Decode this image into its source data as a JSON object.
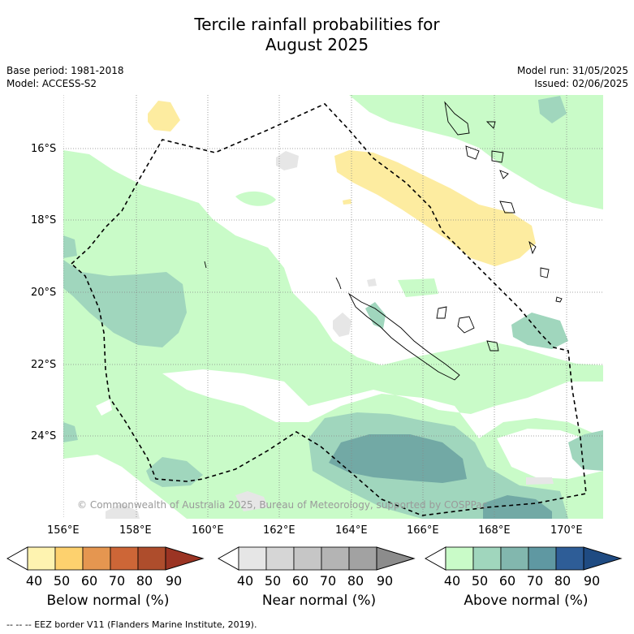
{
  "title_line1": "Tercile rainfall probabilities for",
  "title_line2": "August 2025",
  "base_period": "Base period: 1981-2018",
  "model": "Model: ACCESS-S2",
  "model_run": "Model run: 31/05/2025",
  "issued": "Issued: 02/06/2025",
  "lat_labels": [
    "16°S",
    "18°S",
    "20°S",
    "22°S",
    "24°S"
  ],
  "lon_labels": [
    "156°E",
    "158°E",
    "160°E",
    "162°E",
    "164°E",
    "166°E",
    "168°E",
    "170°E"
  ],
  "copyright": "© Commonwealth of Australia 2025, Bureau of Meteorology, supported by COSPPac",
  "colorbars": [
    {
      "title": "Below normal (%)",
      "ticks": [
        "40",
        "50",
        "60",
        "70",
        "80",
        "90"
      ],
      "colors": [
        "#fef3b0",
        "#fdd16e",
        "#e59650",
        "#cd6637",
        "#ae4d2c",
        "#9b3423"
      ]
    },
    {
      "title": "Near normal (%)",
      "ticks": [
        "40",
        "50",
        "60",
        "70",
        "80",
        "90"
      ],
      "colors": [
        "#e6e6e6",
        "#d6d6d6",
        "#c6c6c6",
        "#b4b4b4",
        "#a2a2a2",
        "#8c8c8c"
      ]
    },
    {
      "title": "Above normal (%)",
      "ticks": [
        "40",
        "50",
        "60",
        "70",
        "80",
        "90"
      ],
      "colors": [
        "#c9fbc8",
        "#a0d6bd",
        "#82b7ae",
        "#5f98a2",
        "#2e5d97",
        "#1f4b82"
      ]
    }
  ],
  "footer": "--  --  -- EEZ border V11 (Flanders Marine Institute, 2019).",
  "colors": {
    "above_40_50": "#c9fbc8",
    "above_50_60": "#a0d6bd",
    "above_60_70": "#82b7ae",
    "below_40_50": "#fdeca0",
    "near_40_50": "#e6e6e6"
  }
}
